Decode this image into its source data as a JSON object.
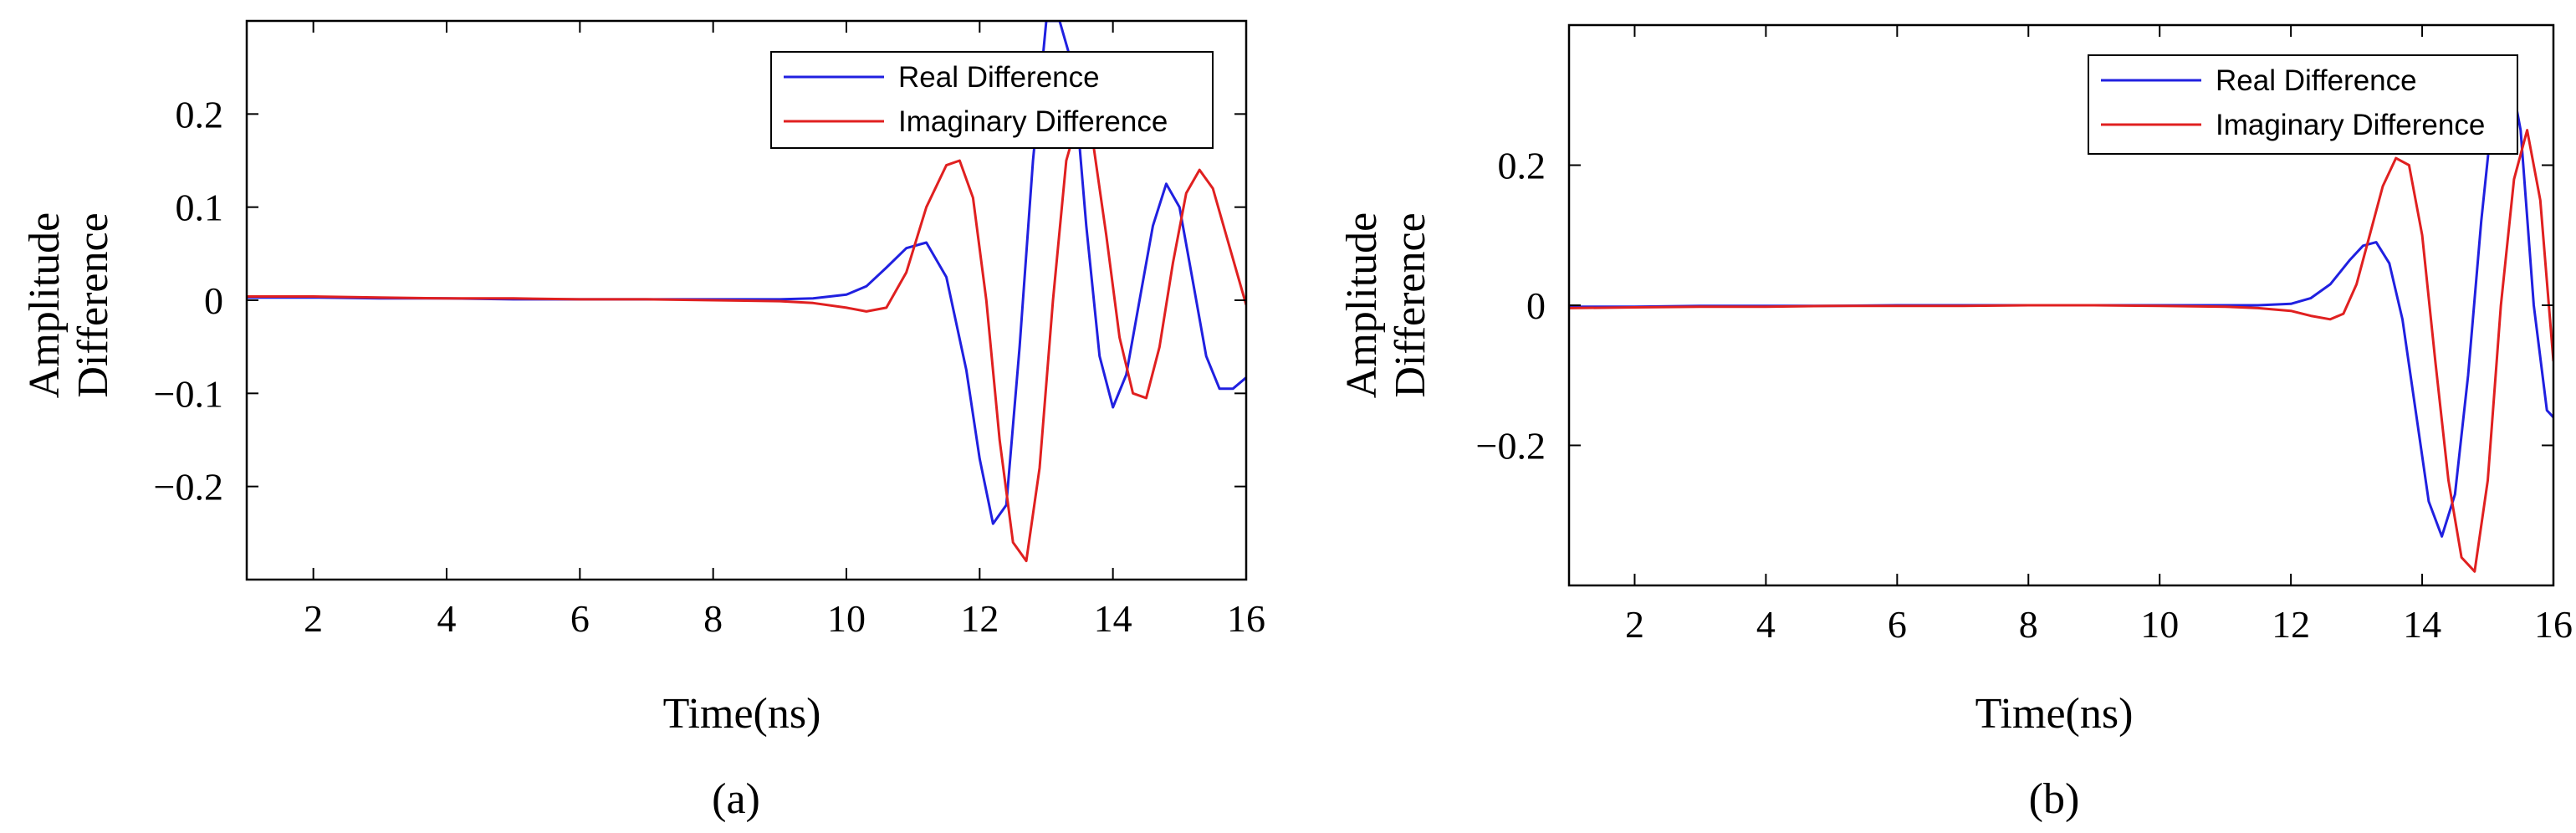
{
  "chart_data": [
    {
      "type": "line",
      "caption": "(a)",
      "xlabel": "Time(ns)",
      "ylabel": [
        "Amplitude",
        "Difference"
      ],
      "xlim": [
        1,
        16
      ],
      "ylim": [
        -0.3,
        0.3
      ],
      "xticks": [
        2,
        4,
        6,
        8,
        10,
        12,
        14,
        16
      ],
      "xtick_labels": [
        "2",
        "4",
        "6",
        "8",
        "10",
        "12",
        "14",
        "16"
      ],
      "yticks": [
        -0.2,
        -0.1,
        0,
        0.1,
        0.2
      ],
      "ytick_labels": [
        "−0.2",
        "−0.1",
        "0",
        "0.1",
        "0.2"
      ],
      "legend_position": "top-right",
      "series": [
        {
          "name": "Real Difference",
          "color": "#2020e0",
          "x": [
            1,
            2,
            3,
            4,
            5,
            6,
            7,
            8,
            9,
            9.5,
            10,
            10.3,
            10.6,
            10.9,
            11.2,
            11.5,
            11.8,
            12.0,
            12.2,
            12.4,
            12.6,
            12.8,
            13.0,
            13.2,
            13.4,
            13.6,
            13.8,
            14.0,
            14.2,
            14.4,
            14.6,
            14.8,
            15.0,
            15.2,
            15.4,
            15.6,
            15.8,
            16.0
          ],
          "y": [
            0.003,
            0.003,
            0.002,
            0.002,
            0.001,
            0.001,
            0.001,
            0.001,
            0.001,
            0.002,
            0.006,
            0.015,
            0.035,
            0.056,
            0.062,
            0.025,
            -0.075,
            -0.17,
            -0.24,
            -0.22,
            -0.05,
            0.15,
            0.3,
            0.3,
            0.25,
            0.08,
            -0.06,
            -0.115,
            -0.08,
            0.0,
            0.08,
            0.125,
            0.1,
            0.02,
            -0.06,
            -0.095,
            -0.095,
            -0.083
          ]
        },
        {
          "name": "Imaginary Difference",
          "color": "#e02020",
          "x": [
            1,
            2,
            3,
            4,
            5,
            6,
            7,
            8,
            9,
            9.5,
            10,
            10.3,
            10.6,
            10.9,
            11.2,
            11.5,
            11.7,
            11.9,
            12.1,
            12.3,
            12.5,
            12.7,
            12.9,
            13.1,
            13.3,
            13.5,
            13.7,
            13.9,
            14.1,
            14.3,
            14.5,
            14.7,
            14.9,
            15.1,
            15.3,
            15.5,
            15.7,
            15.9,
            16.0
          ],
          "y": [
            0.004,
            0.004,
            0.003,
            0.002,
            0.002,
            0.001,
            0.001,
            0.0,
            -0.001,
            -0.003,
            -0.008,
            -0.012,
            -0.008,
            0.03,
            0.1,
            0.145,
            0.15,
            0.11,
            0.0,
            -0.15,
            -0.26,
            -0.28,
            -0.18,
            0.0,
            0.15,
            0.2,
            0.17,
            0.07,
            -0.04,
            -0.1,
            -0.105,
            -0.05,
            0.04,
            0.115,
            0.14,
            0.12,
            0.07,
            0.02,
            -0.005
          ]
        }
      ]
    },
    {
      "type": "line",
      "caption": "(b)",
      "xlabel": "Time(ns)",
      "ylabel": [
        "Amplitude",
        "Difference"
      ],
      "xlim": [
        1,
        16
      ],
      "ylim": [
        -0.4,
        0.4
      ],
      "xticks": [
        2,
        4,
        6,
        8,
        10,
        12,
        14,
        16
      ],
      "xtick_labels": [
        "2",
        "4",
        "6",
        "8",
        "10",
        "12",
        "14",
        "16"
      ],
      "yticks": [
        -0.2,
        0,
        0.2
      ],
      "ytick_labels": [
        "−0.2",
        "0",
        "0.2"
      ],
      "legend_position": "top-right",
      "series": [
        {
          "name": "Real Difference",
          "color": "#2020e0",
          "x": [
            1,
            2,
            3,
            4,
            5,
            6,
            7,
            8,
            9,
            10,
            11,
            11.5,
            12.0,
            12.3,
            12.6,
            12.9,
            13.1,
            13.3,
            13.5,
            13.7,
            13.9,
            14.1,
            14.3,
            14.5,
            14.7,
            14.9,
            15.1,
            15.3,
            15.5,
            15.7,
            15.9,
            16.0
          ],
          "y": [
            -0.002,
            -0.002,
            -0.001,
            -0.001,
            -0.001,
            0.0,
            0.0,
            0.0,
            0.0,
            0.0,
            0.0,
            0.0,
            0.002,
            0.01,
            0.03,
            0.065,
            0.085,
            0.09,
            0.06,
            -0.02,
            -0.15,
            -0.28,
            -0.33,
            -0.27,
            -0.1,
            0.12,
            0.3,
            0.35,
            0.25,
            0.0,
            -0.15,
            -0.16
          ]
        },
        {
          "name": "Imaginary Difference",
          "color": "#e02020",
          "x": [
            1,
            2,
            3,
            4,
            5,
            6,
            7,
            8,
            9,
            10,
            11,
            11.5,
            12.0,
            12.3,
            12.6,
            12.8,
            13.0,
            13.2,
            13.4,
            13.6,
            13.8,
            14.0,
            14.2,
            14.4,
            14.6,
            14.8,
            15.0,
            15.2,
            15.4,
            15.6,
            15.8,
            16.0
          ],
          "y": [
            -0.004,
            -0.003,
            -0.002,
            -0.002,
            -0.001,
            -0.001,
            -0.001,
            0.0,
            0.0,
            -0.001,
            -0.002,
            -0.004,
            -0.008,
            -0.015,
            -0.02,
            -0.012,
            0.03,
            0.1,
            0.17,
            0.21,
            0.2,
            0.1,
            -0.08,
            -0.25,
            -0.36,
            -0.38,
            -0.25,
            0.0,
            0.18,
            0.25,
            0.15,
            -0.08
          ]
        }
      ]
    }
  ]
}
